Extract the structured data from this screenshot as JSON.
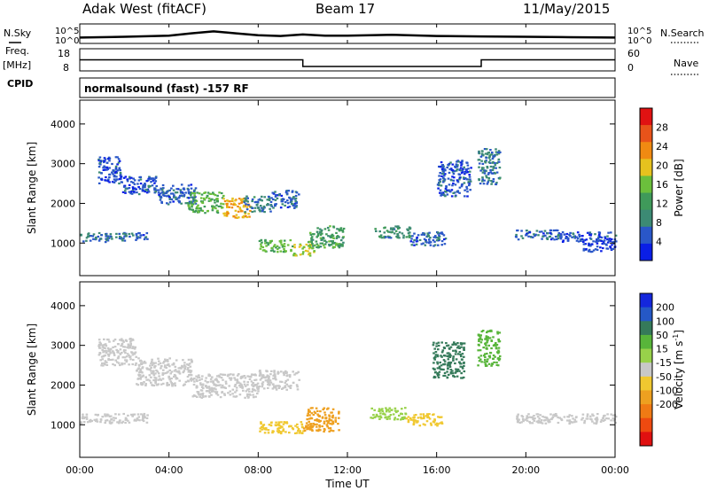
{
  "header": {
    "station": "Adak West (fitACF)",
    "beam": "Beam 17",
    "date": "11/May/2015"
  },
  "side_labels": {
    "nsky": "N.Sky",
    "freq_line1": "Freq.",
    "freq_line2": "[MHz]",
    "cpid": "CPID",
    "nsearch": "N.Search",
    "nave": "Nave"
  },
  "cpid_text": "normalsound (fast) -157 RF",
  "colors": {
    "power": [
      "#0a1ee6",
      "#2a57c8",
      "#3c8a74",
      "#3f9a5a",
      "#6bbf3c",
      "#e6c21e",
      "#f08a12",
      "#e8531a",
      "#e01212"
    ],
    "velocity": [
      "#1427dc",
      "#2558c6",
      "#357a5a",
      "#58b53a",
      "#98d14a",
      "#c8c8c8",
      "#f0c830",
      "#eea020",
      "#f07a14",
      "#ee4a10",
      "#e01010"
    ]
  },
  "chart_data": [
    {
      "name": "noise",
      "type": "line",
      "series": [
        {
          "name": "N.Sky",
          "values": [
            [
              0,
              1.5
            ],
            [
              2,
              1.7
            ],
            [
              4,
              2.0
            ],
            [
              5,
              2.6
            ],
            [
              6,
              3.1
            ],
            [
              7,
              2.6
            ],
            [
              8,
              2.1
            ],
            [
              9,
              1.9
            ],
            [
              10,
              2.3
            ],
            [
              11,
              2.0
            ],
            [
              12,
              2.0
            ],
            [
              14,
              2.2
            ],
            [
              16,
              1.9
            ],
            [
              18,
              1.8
            ],
            [
              20,
              1.7
            ],
            [
              22,
              1.6
            ],
            [
              24,
              1.5
            ]
          ]
        }
      ],
      "yticks_left": [
        "10^5",
        "10^0"
      ],
      "yticks_right": [
        "10^5",
        "10^0"
      ],
      "ylim": [
        0,
        5
      ]
    },
    {
      "name": "frequency",
      "type": "line",
      "series": [
        {
          "name": "Freq.",
          "values": [
            [
              0,
              13
            ],
            [
              10,
              13
            ],
            [
              10,
              10
            ],
            [
              18,
              10
            ],
            [
              18,
              13
            ],
            [
              24,
              13
            ]
          ]
        }
      ],
      "yticks_left": [
        "18",
        "8"
      ],
      "yticks_right": [
        "60",
        "0"
      ],
      "ylim": [
        8,
        18
      ]
    },
    {
      "name": "power",
      "type": "heatmap",
      "xlabel": "",
      "ylabel": "Slant Range [km]",
      "xlim": [
        0,
        24
      ],
      "ylim": [
        180,
        4600
      ],
      "yticks": [
        "1000",
        "2000",
        "3000",
        "4000"
      ],
      "colorbar_label": "Power [dB]",
      "colorbar_ticks": [
        "4",
        "8",
        "12",
        "16",
        "20",
        "24",
        "28"
      ],
      "clim": [
        0,
        32
      ],
      "blobs": [
        {
          "t": [
            0.0,
            1.4
          ],
          "r": [
            1050,
            1300
          ],
          "v": 7
        },
        {
          "t": [
            1.4,
            3.0
          ],
          "r": [
            1080,
            1280
          ],
          "v": 6
        },
        {
          "t": [
            0.8,
            1.8
          ],
          "r": [
            2500,
            3200
          ],
          "v": 5
        },
        {
          "t": [
            1.8,
            3.5
          ],
          "r": [
            2250,
            2700
          ],
          "v": 5
        },
        {
          "t": [
            3.5,
            5.2
          ],
          "r": [
            2000,
            2500
          ],
          "v": 6
        },
        {
          "t": [
            4.8,
            6.4
          ],
          "r": [
            1780,
            2300
          ],
          "v": 14
        },
        {
          "t": [
            6.4,
            7.6
          ],
          "r": [
            1650,
            2150
          ],
          "v": 22
        },
        {
          "t": [
            7.3,
            8.6
          ],
          "r": [
            1800,
            2200
          ],
          "v": 8
        },
        {
          "t": [
            8.6,
            9.8
          ],
          "r": [
            1900,
            2350
          ],
          "v": 6
        },
        {
          "t": [
            8.0,
            9.5
          ],
          "r": [
            800,
            1100
          ],
          "v": 14
        },
        {
          "t": [
            9.5,
            10.5
          ],
          "r": [
            700,
            1000
          ],
          "v": 18
        },
        {
          "t": [
            10.2,
            11.8
          ],
          "r": [
            900,
            1450
          ],
          "v": 12
        },
        {
          "t": [
            13.2,
            14.8
          ],
          "r": [
            1150,
            1450
          ],
          "v": 10
        },
        {
          "t": [
            14.8,
            16.4
          ],
          "r": [
            950,
            1300
          ],
          "v": 6
        },
        {
          "t": [
            16.0,
            17.5
          ],
          "r": [
            2200,
            3100
          ],
          "v": 5
        },
        {
          "t": [
            17.8,
            18.8
          ],
          "r": [
            2500,
            3400
          ],
          "v": 8
        },
        {
          "t": [
            19.5,
            21.5
          ],
          "r": [
            1100,
            1350
          ],
          "v": 6
        },
        {
          "t": [
            21.5,
            24.0
          ],
          "r": [
            1050,
            1300
          ],
          "v": 5
        },
        {
          "t": [
            22.5,
            24.0
          ],
          "r": [
            800,
            1100
          ],
          "v": 4
        }
      ]
    },
    {
      "name": "velocity",
      "type": "heatmap",
      "xlabel": "Time UT",
      "ylabel": "Slant Range [km]",
      "xlim": [
        0,
        24
      ],
      "ylim": [
        180,
        4600
      ],
      "xticks": [
        "00:00",
        "04:00",
        "08:00",
        "12:00",
        "16:00",
        "20:00",
        "00:00"
      ],
      "yticks": [
        "1000",
        "2000",
        "3000",
        "4000"
      ],
      "colorbar_label": "Velocity [m s",
      "colorbar_label_sup": "-1",
      "colorbar_label_end": "]",
      "colorbar_ticks": [
        "200",
        "100",
        "50",
        "15",
        "-15",
        "-50",
        "-100",
        "-200"
      ],
      "blobs": [
        {
          "t": [
            0.0,
            3.0
          ],
          "r": [
            1050,
            1300
          ],
          "v": 0
        },
        {
          "t": [
            0.8,
            2.5
          ],
          "r": [
            2500,
            3200
          ],
          "v": 0
        },
        {
          "t": [
            2.5,
            5.0
          ],
          "r": [
            2000,
            2700
          ],
          "v": 0
        },
        {
          "t": [
            5.0,
            8.0
          ],
          "r": [
            1700,
            2300
          ],
          "v": 0
        },
        {
          "t": [
            8.0,
            9.8
          ],
          "r": [
            1900,
            2400
          ],
          "v": 0
        },
        {
          "t": [
            8.0,
            10.0
          ],
          "r": [
            800,
            1100
          ],
          "v": -25
        },
        {
          "t": [
            10.0,
            11.6
          ],
          "r": [
            850,
            1450
          ],
          "v": -80
        },
        {
          "t": [
            13.0,
            14.6
          ],
          "r": [
            1150,
            1450
          ],
          "v": 40
        },
        {
          "t": [
            14.6,
            16.2
          ],
          "r": [
            1000,
            1300
          ],
          "v": -30
        },
        {
          "t": [
            15.8,
            17.2
          ],
          "r": [
            2200,
            3100
          ],
          "v": 180
        },
        {
          "t": [
            17.8,
            18.8
          ],
          "r": [
            2500,
            3400
          ],
          "v": 90
        },
        {
          "t": [
            19.5,
            24.0
          ],
          "r": [
            1050,
            1300
          ],
          "v": 0
        }
      ]
    }
  ]
}
